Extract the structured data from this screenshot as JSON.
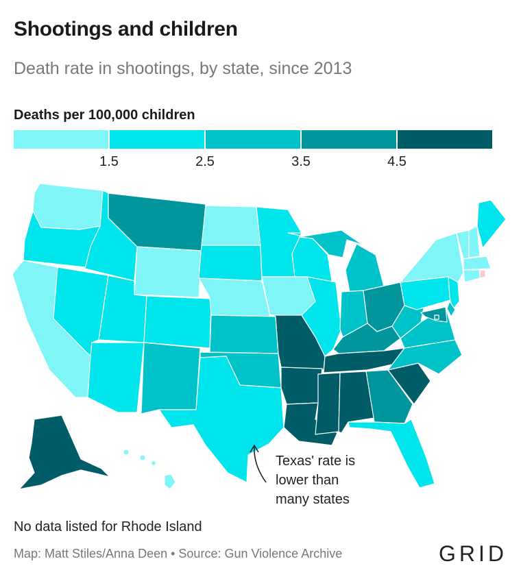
{
  "title": "Shootings and children",
  "subtitle": "Death rate in shootings, by state, since 2013",
  "legend": {
    "title": "Deaths per 100,000 children",
    "colors": [
      "#7ff5f8",
      "#00e5ec",
      "#00c3ca",
      "#00969c",
      "#005c66"
    ],
    "ticks": [
      "1.5",
      "2.5",
      "3.5",
      "4.5"
    ]
  },
  "annotation": {
    "lines": [
      "Texas' rate is",
      "lower than",
      "many states"
    ]
  },
  "note": "No data listed for Rhode Island",
  "credit": "Map: Matt Stiles/Anna Deen • Source: Gun Violence Archive",
  "logo": "GRID",
  "states": {
    "WA": 1,
    "OR": 2,
    "CA": 1,
    "ID": 2,
    "NV": 2,
    "MT": 4,
    "WY": 1,
    "UT": 2,
    "AZ": 2,
    "CO": 2,
    "NM": 3,
    "ND": 1,
    "SD": 2,
    "NE": 1,
    "KS": 3,
    "OK": 3,
    "TX": 2,
    "MN": 2,
    "IA": 1,
    "MO": 5,
    "AR": 5,
    "LA": 5,
    "WI": 2,
    "IL": 2,
    "MI": 3,
    "IN": 3,
    "OH": 4,
    "KY": 4,
    "TN": 5,
    "MS": 5,
    "AL": 5,
    "GA": 4,
    "FL": 2,
    "SC": 5,
    "NC": 3,
    "VA": 3,
    "WV": 3,
    "PA": 2,
    "NY": 1,
    "ME": 2,
    "VT": 1,
    "NH": 1,
    "MA": 1,
    "CT": 1,
    "RI": 0,
    "NJ": 2,
    "DE": 3,
    "MD": 4,
    "DC": 4,
    "AK": 5,
    "HI": 1
  }
}
